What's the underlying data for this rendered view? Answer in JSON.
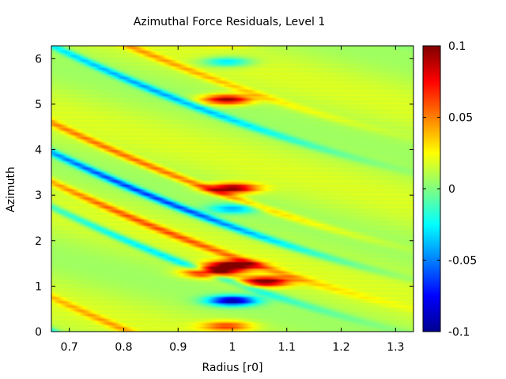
{
  "chart_data": {
    "type": "heatmap",
    "title": "Azimuthal Force Residuals, Level 1",
    "xlabel": "Radius [r0]",
    "ylabel": "Azimuth",
    "xlim": [
      0.667,
      1.333
    ],
    "ylim": [
      0,
      6.283
    ],
    "xticks": [
      "0.7",
      "0.8",
      "0.9",
      "1",
      "1.1",
      "1.2",
      "1.3"
    ],
    "xtick_values": [
      0.7,
      0.8,
      0.9,
      1.0,
      1.1,
      1.2,
      1.3
    ],
    "yticks": [
      "0",
      "1",
      "2",
      "3",
      "4",
      "5",
      "6"
    ],
    "ytick_values": [
      0,
      1,
      2,
      3,
      4,
      5,
      6
    ],
    "colorbar": {
      "min": -0.1,
      "max": 0.1,
      "ticks": [
        "0.1",
        "0.05",
        "0",
        "-0.05",
        "-0.1"
      ],
      "tick_values": [
        0.1,
        0.05,
        0,
        -0.05,
        -0.1
      ],
      "colormap": "jet"
    },
    "features": [
      {
        "kind": "blob",
        "r": 0.99,
        "phi": 5.1,
        "value": 0.085
      },
      {
        "kind": "blob",
        "r": 0.99,
        "phi": 5.93,
        "value": -0.045
      },
      {
        "kind": "blob",
        "r": 1.0,
        "phi": 3.15,
        "value": 0.09
      },
      {
        "kind": "blob",
        "r": 1.0,
        "phi": 2.7,
        "value": -0.045
      },
      {
        "kind": "blob",
        "r": 1.0,
        "phi": 1.45,
        "value": 0.1
      },
      {
        "kind": "blob",
        "r": 1.06,
        "phi": 1.1,
        "value": 0.09
      },
      {
        "kind": "blob",
        "r": 0.96,
        "phi": 1.3,
        "value": 0.09
      },
      {
        "kind": "blob",
        "r": 1.0,
        "phi": 0.68,
        "value": -0.1
      },
      {
        "kind": "blob",
        "r": 0.99,
        "phi": 0.12,
        "value": 0.05
      },
      {
        "kind": "arm",
        "phi_at_r0": 2.3,
        "value": -0.1
      },
      {
        "kind": "arm",
        "phi_at_r0": 2.95,
        "value": 0.06
      },
      {
        "kind": "arm",
        "phi_at_r0": 4.65,
        "value": -0.07
      },
      {
        "kind": "arm",
        "phi_at_r0": 5.4,
        "value": 0.04
      },
      {
        "kind": "arm",
        "phi_at_r0": 1.65,
        "value": 0.06
      },
      {
        "kind": "arm",
        "phi_at_r0": 1.1,
        "value": -0.06
      }
    ]
  }
}
